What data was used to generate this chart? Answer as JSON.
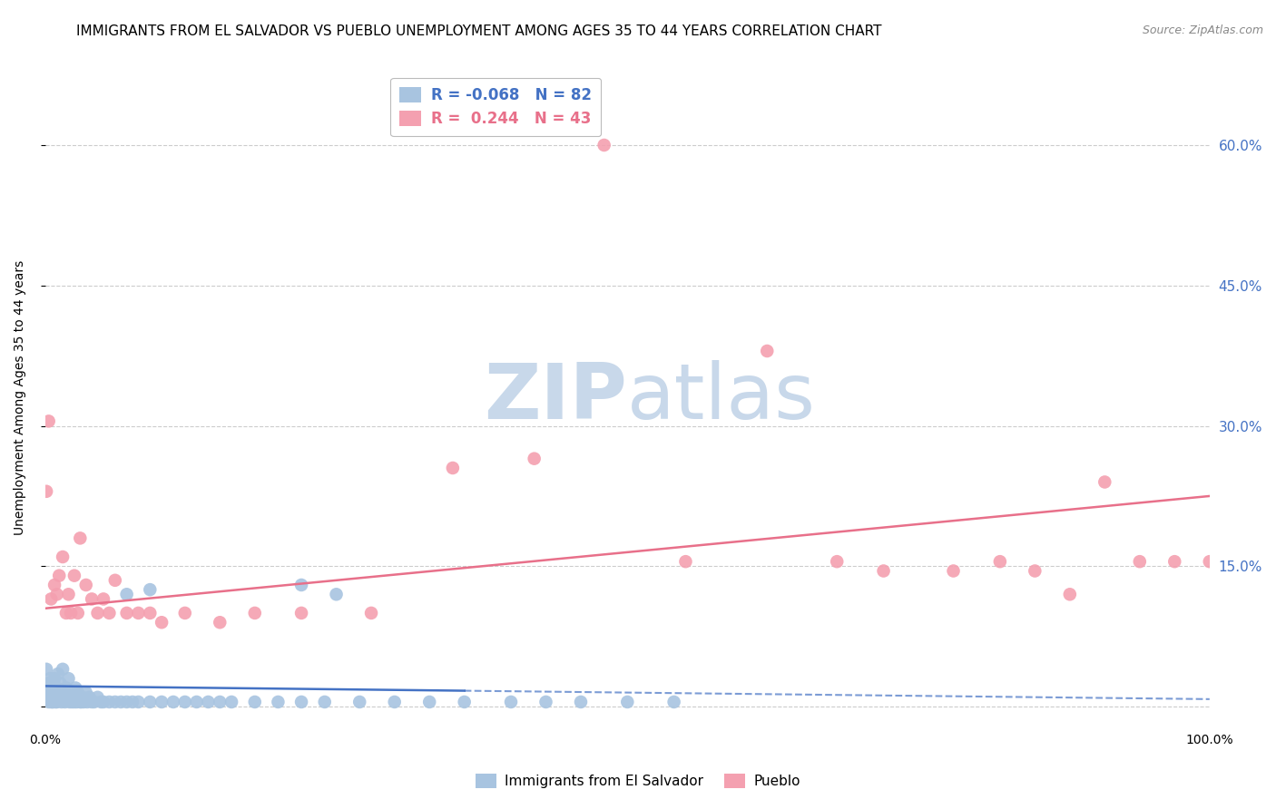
{
  "title": "IMMIGRANTS FROM EL SALVADOR VS PUEBLO UNEMPLOYMENT AMONG AGES 35 TO 44 YEARS CORRELATION CHART",
  "source": "Source: ZipAtlas.com",
  "ylabel": "Unemployment Among Ages 35 to 44 years",
  "yticks_right": [
    0.0,
    0.15,
    0.3,
    0.45,
    0.6
  ],
  "ytick_labels_right": [
    "",
    "15.0%",
    "30.0%",
    "45.0%",
    "60.0%"
  ],
  "xlim": [
    0.0,
    1.0
  ],
  "ylim": [
    -0.02,
    0.68
  ],
  "legend_blue_label": "Immigrants from El Salvador",
  "legend_pink_label": "Pueblo",
  "blue_R": "-0.068",
  "blue_N": "82",
  "pink_R": "0.244",
  "pink_N": "43",
  "blue_scatter_x": [
    0.001,
    0.002,
    0.003,
    0.003,
    0.004,
    0.004,
    0.005,
    0.005,
    0.006,
    0.006,
    0.007,
    0.007,
    0.008,
    0.008,
    0.009,
    0.009,
    0.01,
    0.01,
    0.011,
    0.011,
    0.012,
    0.013,
    0.014,
    0.015,
    0.015,
    0.016,
    0.017,
    0.018,
    0.019,
    0.02,
    0.021,
    0.022,
    0.023,
    0.024,
    0.025,
    0.026,
    0.027,
    0.028,
    0.029,
    0.03,
    0.031,
    0.032,
    0.033,
    0.035,
    0.036,
    0.038,
    0.04,
    0.042,
    0.045,
    0.048,
    0.05,
    0.055,
    0.06,
    0.065,
    0.07,
    0.075,
    0.08,
    0.09,
    0.1,
    0.11,
    0.12,
    0.13,
    0.14,
    0.15,
    0.16,
    0.18,
    0.2,
    0.22,
    0.24,
    0.27,
    0.3,
    0.33,
    0.36,
    0.4,
    0.43,
    0.46,
    0.5,
    0.54,
    0.22,
    0.25,
    0.07,
    0.09
  ],
  "blue_scatter_y": [
    0.04,
    0.02,
    0.005,
    0.025,
    0.01,
    0.03,
    0.005,
    0.015,
    0.005,
    0.02,
    0.01,
    0.005,
    0.015,
    0.03,
    0.005,
    0.01,
    0.02,
    0.005,
    0.015,
    0.035,
    0.01,
    0.025,
    0.005,
    0.015,
    0.04,
    0.01,
    0.005,
    0.02,
    0.01,
    0.03,
    0.005,
    0.015,
    0.005,
    0.01,
    0.005,
    0.02,
    0.005,
    0.015,
    0.01,
    0.005,
    0.005,
    0.01,
    0.005,
    0.015,
    0.005,
    0.01,
    0.005,
    0.005,
    0.01,
    0.005,
    0.005,
    0.005,
    0.005,
    0.005,
    0.005,
    0.005,
    0.005,
    0.005,
    0.005,
    0.005,
    0.005,
    0.005,
    0.005,
    0.005,
    0.005,
    0.005,
    0.005,
    0.005,
    0.005,
    0.005,
    0.005,
    0.005,
    0.005,
    0.005,
    0.005,
    0.005,
    0.005,
    0.005,
    0.13,
    0.12,
    0.12,
    0.125
  ],
  "pink_scatter_x": [
    0.001,
    0.003,
    0.005,
    0.008,
    0.01,
    0.012,
    0.015,
    0.018,
    0.02,
    0.022,
    0.025,
    0.028,
    0.03,
    0.035,
    0.04,
    0.045,
    0.05,
    0.055,
    0.06,
    0.07,
    0.08,
    0.09,
    0.1,
    0.12,
    0.15,
    0.18,
    0.22,
    0.28,
    0.35,
    0.42,
    0.48,
    0.55,
    0.62,
    0.68,
    0.72,
    0.78,
    0.82,
    0.85,
    0.88,
    0.91,
    0.94,
    0.97,
    1.0
  ],
  "pink_scatter_y": [
    0.23,
    0.305,
    0.115,
    0.13,
    0.12,
    0.14,
    0.16,
    0.1,
    0.12,
    0.1,
    0.14,
    0.1,
    0.18,
    0.13,
    0.115,
    0.1,
    0.115,
    0.1,
    0.135,
    0.1,
    0.1,
    0.1,
    0.09,
    0.1,
    0.09,
    0.1,
    0.1,
    0.1,
    0.255,
    0.265,
    0.6,
    0.155,
    0.38,
    0.155,
    0.145,
    0.145,
    0.155,
    0.145,
    0.12,
    0.24,
    0.155,
    0.155,
    0.155
  ],
  "blue_color": "#a8c4e0",
  "pink_color": "#f4a0b0",
  "blue_line_color": "#4472c4",
  "pink_line_color": "#e8708a",
  "watermark_zip_color": "#c8d8ea",
  "watermark_atlas_color": "#c8d8ea",
  "title_fontsize": 11,
  "axis_label_fontsize": 10,
  "tick_fontsize": 10,
  "right_tick_color": "#4472c4",
  "grid_color": "#cccccc",
  "blue_trend_x0": 0.0,
  "blue_trend_x1": 0.36,
  "blue_trend_y0": 0.022,
  "blue_trend_y1": 0.017,
  "blue_trend_dash_x0": 0.36,
  "blue_trend_dash_x1": 1.0,
  "blue_trend_dash_y0": 0.017,
  "blue_trend_dash_y1": 0.008,
  "pink_trend_x0": 0.0,
  "pink_trend_x1": 1.0,
  "pink_trend_y0": 0.105,
  "pink_trend_y1": 0.225
}
